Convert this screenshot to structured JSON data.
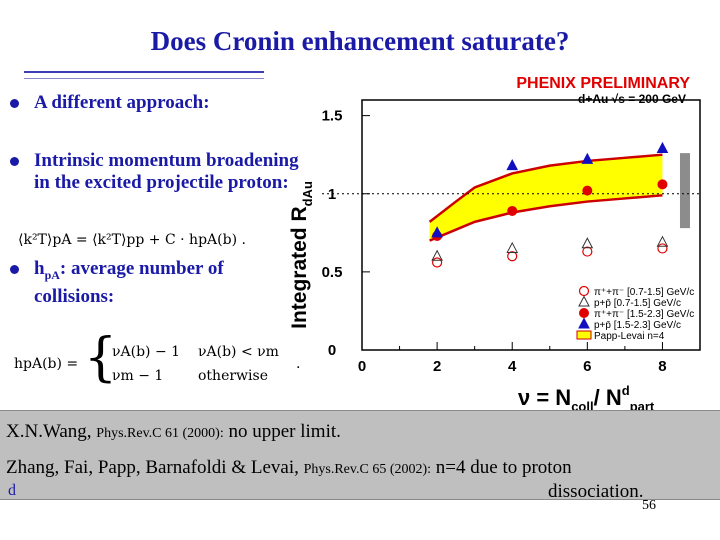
{
  "slide": {
    "title": "Does Cronin enhancement saturate?",
    "bullets": [
      {
        "lines": [
          "A different approach:"
        ]
      },
      {
        "lines": [
          "Intrinsic momentum broadening",
          "in the excited projectile proton:"
        ]
      },
      {
        "lines": [
          "h pA : average number of",
          "collisions:"
        ],
        "prefix": "h",
        "sub": "pA",
        "rest": ": average number of",
        "line2": "collisions:"
      }
    ],
    "formula1": {
      "lhs": "⟨k²T⟩pA",
      "eq": "=",
      "rhs": "⟨k²T⟩pp + C · hpA(b) ."
    },
    "formula2": {
      "lhs": "hpA(b) =",
      "case1": "νA(b) − 1",
      "cond1": "νA(b) < νm",
      "case2": "νm − 1",
      "cond2": "otherwise",
      "end": "."
    },
    "references": [
      {
        "author": "X.N.Wang,",
        "journal": "Phys.Rev.C 61 (2000):",
        "note": "no upper limit."
      },
      {
        "author": "Zhang, Fai, Papp, Barnafoldi & Levai,",
        "journal": "Phys.Rev.C 65 (2002):",
        "note": "n=4 due to proton"
      },
      {
        "continuation": "dissociation."
      }
    ],
    "stray_letter": "d",
    "page_number": "56"
  },
  "chart_data": {
    "type": "scatter",
    "title": "PHENIX PRELIMINARY",
    "subtitle": "d+Au  √s = 200 GeV",
    "ylabel": "Integrated R",
    "ylabel_sub": "dAu",
    "xlabel": "ν = N",
    "xlabel_sub1": "coll",
    "xlabel_mid": "/ N",
    "xlabel_sup": "d",
    "xlabel_sub2": "part",
    "xlim": [
      0,
      9
    ],
    "ylim": [
      0,
      1.6
    ],
    "xticks": [
      "0",
      "2",
      "4",
      "6",
      "8"
    ],
    "yticks": [
      "0",
      "0.5",
      "1",
      "1.5"
    ],
    "reference_line": 1,
    "colors": {
      "band_fill": "#ffff00",
      "band_edge": "#cc0000",
      "red": "#e00000",
      "blue": "#1010c0",
      "frame": "#000000"
    },
    "series": [
      {
        "name": "π⁺+π⁻ [0.7-1.5] GeV/c",
        "marker": "circle-open",
        "x": [
          2,
          4,
          6,
          8
        ],
        "y": [
          0.56,
          0.6,
          0.63,
          0.65
        ]
      },
      {
        "name": "p+p̄ [0.7-1.5] GeV/c",
        "marker": "triangle-open",
        "x": [
          2,
          4,
          6,
          8
        ],
        "y": [
          0.6,
          0.65,
          0.68,
          0.69
        ]
      },
      {
        "name": "π⁺+π⁻ [1.5-2.3] GeV/c",
        "marker": "circle-filled",
        "x": [
          2,
          4,
          6,
          8
        ],
        "y": [
          0.73,
          0.89,
          1.02,
          1.06
        ]
      },
      {
        "name": "p+p̄ [1.5-2.3] GeV/c",
        "marker": "triangle-filled",
        "x": [
          2,
          4,
          6,
          8
        ],
        "y": [
          0.75,
          1.18,
          1.22,
          1.29
        ]
      },
      {
        "name": "Papp-Levai n=4",
        "marker": "band"
      }
    ],
    "band": {
      "x": [
        1.8,
        2.5,
        3,
        4,
        5,
        6,
        7,
        8
      ],
      "upper": [
        0.82,
        0.95,
        1.04,
        1.13,
        1.18,
        1.21,
        1.23,
        1.25
      ],
      "lower": [
        0.7,
        0.77,
        0.82,
        0.88,
        0.92,
        0.95,
        0.97,
        0.99
      ]
    },
    "systematic_bar": {
      "x": 8.6,
      "low": 0.78,
      "high": 1.26
    },
    "legend_position": "bottom-right"
  }
}
